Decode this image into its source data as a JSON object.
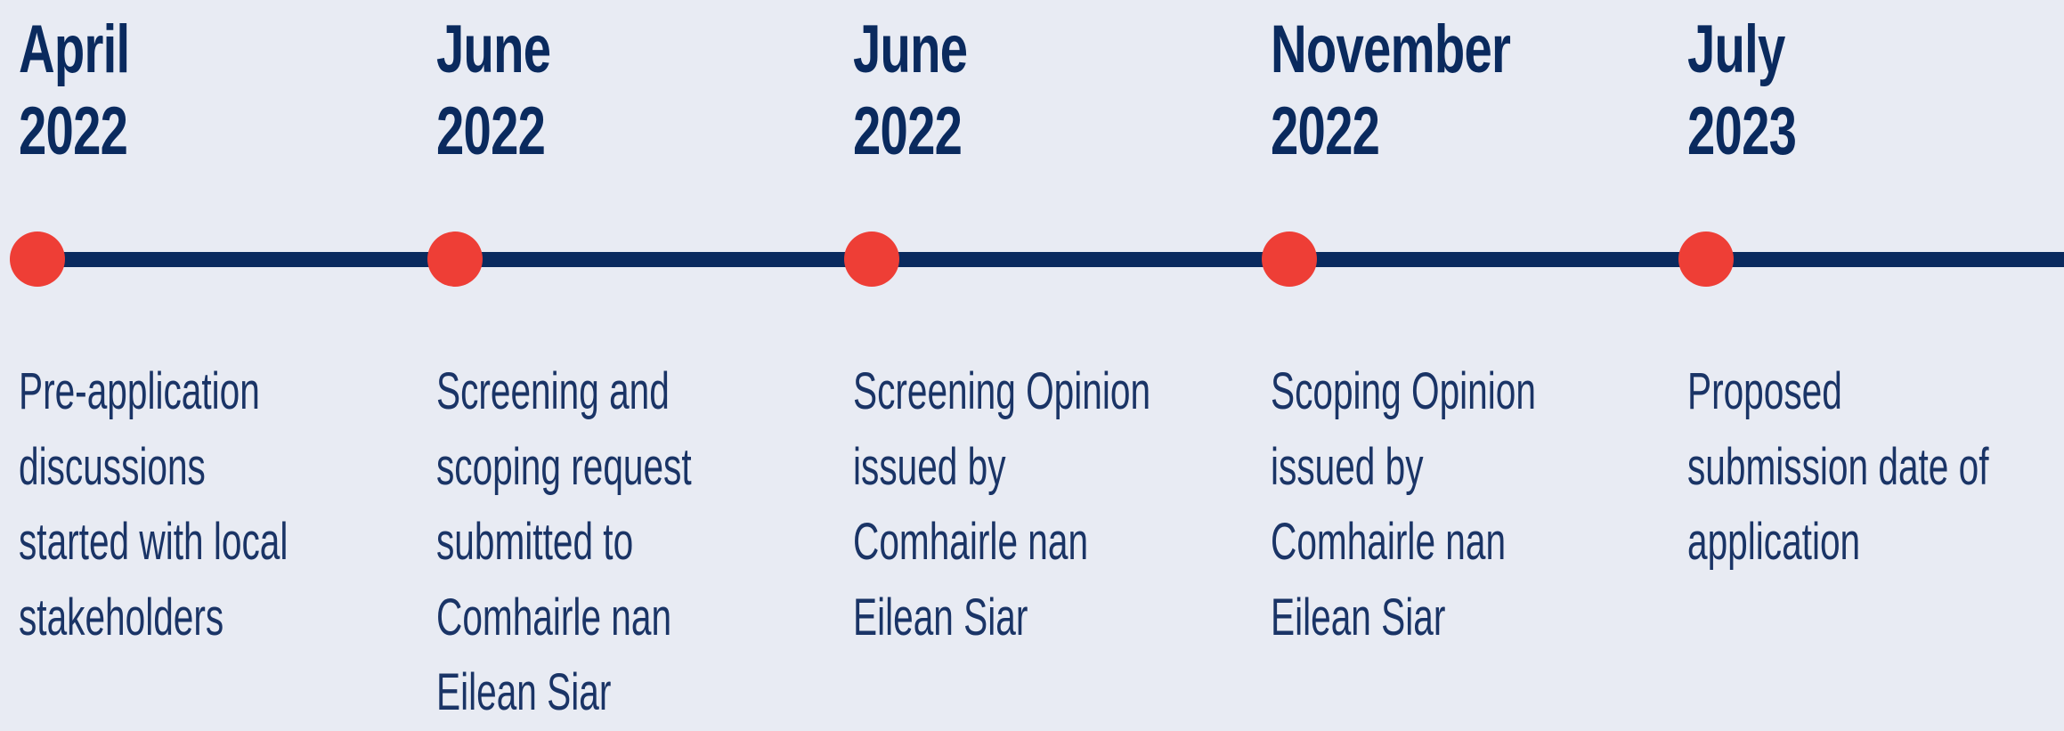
{
  "timeline": {
    "events": [
      {
        "month": "April",
        "year": "2022",
        "lines": [
          "Pre-application",
          "discussions",
          "started with local",
          "stakeholders"
        ]
      },
      {
        "month": "June",
        "year": "2022",
        "lines": [
          "Screening and",
          "scoping request",
          "submitted to",
          "Comhairle nan",
          "Eilean Siar"
        ]
      },
      {
        "month": "June",
        "year": "2022",
        "lines": [
          "Screening Opinion",
          "issued by",
          "Comhairle nan",
          "Eilean Siar"
        ]
      },
      {
        "month": "November",
        "year": "2022",
        "lines": [
          "Scoping Opinion",
          "issued by",
          "Comhairle nan",
          "Eilean Siar"
        ]
      },
      {
        "month": "July",
        "year": "2023",
        "lines": [
          "Proposed",
          "submission date of",
          "application"
        ]
      }
    ]
  }
}
